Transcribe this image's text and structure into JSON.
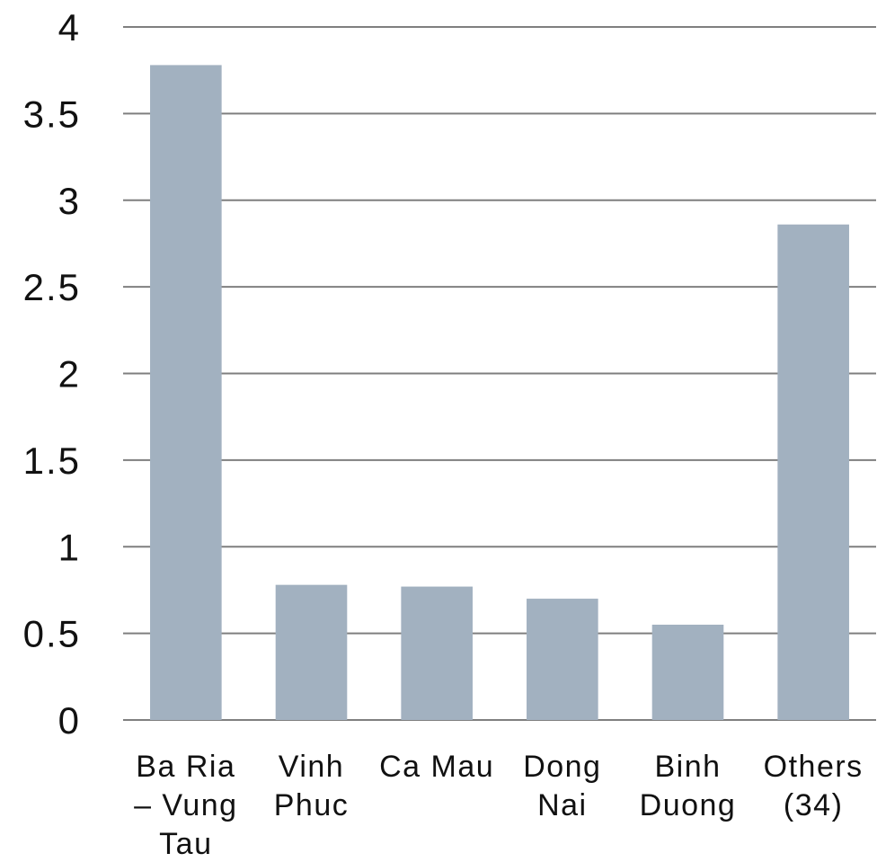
{
  "chart_data": {
    "type": "bar",
    "categories": [
      [
        "Ba Ria",
        "– Vung",
        "Tau"
      ],
      [
        "Vinh",
        "Phuc"
      ],
      [
        "Ca Mau"
      ],
      [
        "Dong",
        "Nai"
      ],
      [
        "Binh",
        "Duong"
      ],
      [
        "Others",
        "(34)"
      ]
    ],
    "values": [
      3.78,
      0.78,
      0.77,
      0.7,
      0.55,
      2.86
    ],
    "yticks": [
      "0",
      "0.5",
      "1",
      "1.5",
      "2",
      "2.5",
      "3",
      "3.5",
      "4"
    ],
    "ylim": [
      0,
      4
    ],
    "grid": true,
    "bar_color": "#a2b1c0",
    "title": "",
    "xlabel": "",
    "ylabel": ""
  }
}
